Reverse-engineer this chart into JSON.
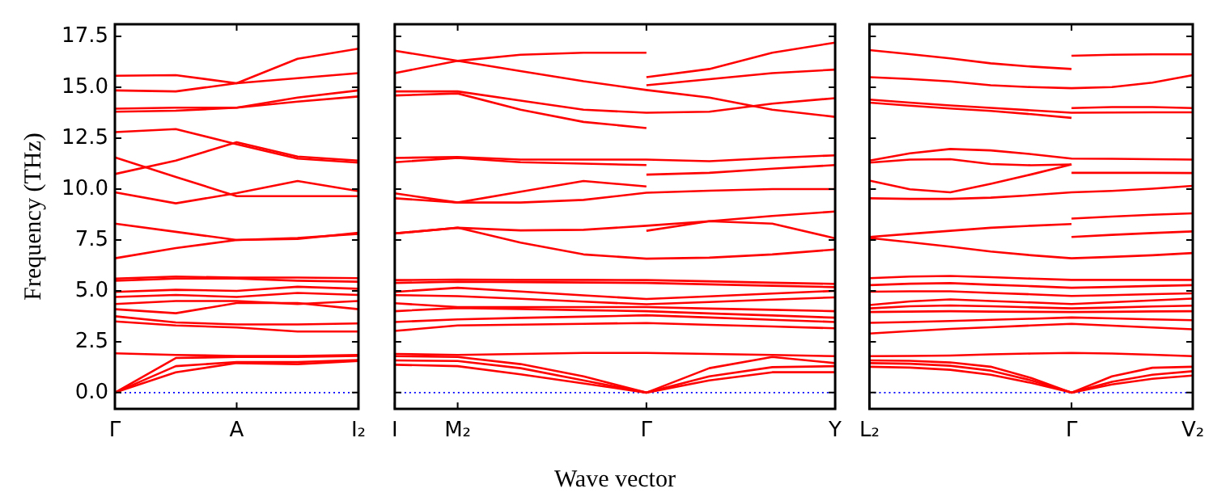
{
  "chart_data": [
    {
      "type": "line",
      "ylabel": "Frequency (THz)",
      "categories": [
        "Γ",
        null,
        "A",
        null,
        "I₂"
      ],
      "ylim": [
        -0.8,
        18.1
      ],
      "yticks": [
        {
          "value": 0,
          "label": "0.0"
        },
        2.5,
        {
          "value": 5,
          "label": "5.0"
        },
        7.5,
        {
          "value": 10,
          "label": "10.0"
        },
        12.5,
        {
          "value": 15,
          "label": "15.0"
        },
        17.5
      ],
      "ref_lines": [
        {
          "axis": "y",
          "value": 0,
          "color": "#0000ff",
          "line_style": "dotted"
        }
      ],
      "series": [
        {
          "color": "#ff0000",
          "values": [
            0,
            1.0,
            1.45,
            1.4,
            1.55
          ]
        },
        {
          "color": "#ff0000",
          "values": [
            0,
            1.3,
            1.5,
            1.5,
            1.6
          ]
        },
        {
          "color": "#ff0000",
          "values": [
            0,
            1.7,
            1.75,
            1.75,
            1.8
          ]
        },
        {
          "color": "#ff0000",
          "values": [
            1.93,
            1.85,
            1.8,
            1.8,
            1.85
          ]
        },
        {
          "color": "#ff0000",
          "values": [
            3.5,
            3.3,
            3.2,
            3.0,
            3.0
          ]
        },
        {
          "color": "#ff0000",
          "values": [
            3.75,
            3.45,
            3.35,
            3.35,
            3.4
          ]
        },
        {
          "color": "#ff0000",
          "values": [
            4.1,
            3.9,
            4.4,
            4.4,
            4.1
          ]
        },
        {
          "color": "#ff0000",
          "values": [
            4.35,
            4.5,
            4.5,
            4.35,
            4.5
          ]
        },
        {
          "color": "#ff0000",
          "values": [
            4.7,
            4.8,
            4.7,
            4.9,
            4.8
          ]
        },
        {
          "color": "#ff0000",
          "values": [
            4.95,
            5.05,
            5.0,
            5.2,
            5.1
          ]
        },
        {
          "color": "#ff0000",
          "values": [
            5.5,
            5.6,
            5.6,
            5.5,
            5.45
          ]
        },
        {
          "color": "#ff0000",
          "values": [
            5.6,
            5.7,
            5.65,
            5.65,
            5.62
          ]
        },
        {
          "color": "#ff0000",
          "values": [
            6.6,
            7.1,
            7.5,
            7.55,
            7.85
          ]
        },
        {
          "color": "#ff0000",
          "values": [
            8.3,
            7.9,
            7.5,
            7.6,
            7.8
          ]
        },
        {
          "color": "#ff0000",
          "values": [
            9.84,
            9.3,
            9.8,
            10.4,
            9.9
          ]
        },
        {
          "color": "#ff0000",
          "values": [
            11.56,
            10.6,
            9.65,
            9.65,
            9.65
          ]
        },
        {
          "color": "#ff0000",
          "values": [
            10.74,
            11.4,
            12.3,
            11.6,
            11.4
          ]
        },
        {
          "color": "#ff0000",
          "values": [
            12.8,
            12.95,
            12.2,
            11.5,
            11.3
          ]
        },
        {
          "color": "#ff0000",
          "values": [
            13.8,
            13.85,
            14.0,
            14.3,
            14.55
          ]
        },
        {
          "color": "#ff0000",
          "values": [
            13.95,
            14.0,
            14.0,
            14.5,
            14.85
          ]
        },
        {
          "color": "#ff0000",
          "values": [
            14.85,
            14.8,
            15.2,
            15.45,
            15.7
          ]
        },
        {
          "color": "#ff0000",
          "values": [
            15.57,
            15.6,
            15.2,
            16.4,
            16.9
          ]
        }
      ]
    },
    {
      "type": "line",
      "xlabel": "Wave vector",
      "tick_labels": "x",
      "categories": [
        "I",
        "M₂",
        null,
        null,
        "Γ",
        null,
        null,
        "Y"
      ],
      "ylim": [
        -0.8,
        18.1
      ],
      "yticks": [
        0,
        2.5,
        5,
        7.5,
        10,
        12.5,
        15,
        17.5
      ],
      "ref_lines": [
        {
          "axis": "y",
          "value": 0,
          "color": "#0000ff",
          "line_style": "dotted"
        }
      ],
      "series": [
        {
          "color": "#ff0000",
          "values": [
            16.8,
            16.3,
            15.8,
            15.3,
            14.87,
            14.5,
            13.9,
            13.55
          ]
        },
        {
          "color": "#ff0000",
          "values": [
            15.7,
            16.3,
            16.6,
            16.7,
            16.7,
            null,
            null,
            null
          ]
        },
        {
          "color": "#ff0000",
          "values": [
            14.8,
            14.8,
            14.35,
            13.9,
            13.75,
            13.8,
            14.2,
            14.47
          ]
        },
        {
          "color": "#ff0000",
          "values": [
            14.6,
            14.7,
            13.9,
            13.3,
            13.0,
            null,
            null,
            null
          ]
        },
        {
          "color": "#ff0000",
          "values": [
            null,
            null,
            null,
            null,
            15.5,
            15.9,
            16.7,
            17.2
          ]
        },
        {
          "color": "#ff0000",
          "values": [
            null,
            null,
            null,
            null,
            15.1,
            15.4,
            15.7,
            15.87
          ]
        },
        {
          "color": "#ff0000",
          "values": [
            11.53,
            11.58,
            11.45,
            11.45,
            11.45,
            11.37,
            11.53,
            11.66
          ]
        },
        {
          "color": "#ff0000",
          "values": [
            11.32,
            11.53,
            11.32,
            11.25,
            11.18,
            null,
            null,
            null
          ]
        },
        {
          "color": "#ff0000",
          "values": [
            null,
            null,
            null,
            null,
            10.71,
            10.8,
            11.0,
            11.18
          ]
        },
        {
          "color": "#ff0000",
          "values": [
            9.79,
            9.34,
            9.87,
            10.4,
            10.13,
            null,
            null,
            null
          ]
        },
        {
          "color": "#ff0000",
          "values": [
            9.55,
            9.34,
            9.34,
            9.47,
            9.82,
            9.92,
            10.0,
            10.0
          ]
        },
        {
          "color": "#ff0000",
          "values": [
            7.82,
            8.1,
            7.97,
            8.0,
            8.2,
            8.42,
            8.68,
            8.9
          ]
        },
        {
          "color": "#ff0000",
          "values": [
            7.82,
            8.1,
            7.37,
            6.79,
            6.58,
            6.63,
            6.79,
            7.03
          ]
        },
        {
          "color": "#ff0000",
          "values": [
            null,
            null,
            null,
            null,
            7.95,
            8.42,
            8.3,
            7.58
          ]
        },
        {
          "color": "#ff0000",
          "values": [
            5.53,
            5.55,
            5.54,
            5.54,
            5.53,
            5.47,
            5.4,
            5.34
          ]
        },
        {
          "color": "#ff0000",
          "values": [
            5.39,
            5.45,
            5.43,
            5.41,
            5.39,
            5.32,
            5.25,
            5.18
          ]
        },
        {
          "color": "#ff0000",
          "values": [
            4.95,
            5.15,
            4.97,
            4.78,
            4.6,
            4.73,
            4.87,
            5.0
          ]
        },
        {
          "color": "#ff0000",
          "values": [
            4.79,
            4.74,
            4.61,
            4.47,
            4.34,
            4.45,
            4.57,
            4.68
          ]
        },
        {
          "color": "#ff0000",
          "values": [
            4.39,
            4.2,
            4.2,
            4.2,
            4.2,
            4.13,
            4.07,
            4.0
          ]
        },
        {
          "color": "#ff0000",
          "values": [
            4.0,
            4.16,
            4.11,
            4.05,
            4.0,
            3.89,
            3.79,
            3.68
          ]
        },
        {
          "color": "#ff0000",
          "values": [
            3.47,
            3.6,
            3.67,
            3.73,
            3.8,
            3.69,
            3.58,
            3.47
          ]
        },
        {
          "color": "#ff0000",
          "values": [
            3.03,
            3.3,
            3.34,
            3.38,
            3.42,
            3.33,
            3.25,
            3.16
          ]
        },
        {
          "color": "#ff0000",
          "values": [
            1.37,
            1.3,
            0.9,
            0.45,
            0,
            0.6,
            1.0,
            1.0
          ]
        },
        {
          "color": "#ff0000",
          "values": [
            1.58,
            1.55,
            1.2,
            0.6,
            0,
            0.8,
            1.25,
            1.3
          ]
        },
        {
          "color": "#ff0000",
          "values": [
            1.79,
            1.75,
            1.4,
            0.8,
            0,
            1.2,
            1.75,
            1.45
          ]
        },
        {
          "color": "#ff0000",
          "values": [
            1.9,
            1.85,
            1.9,
            1.95,
            1.95,
            1.9,
            1.85,
            1.79
          ]
        }
      ]
    },
    {
      "type": "line",
      "tick_labels": "x",
      "categories": [
        "L₂",
        null,
        null,
        null,
        null,
        "Γ",
        null,
        null,
        "V₂"
      ],
      "ylim": [
        -0.8,
        18.1
      ],
      "yticks": [
        0,
        2.5,
        5,
        7.5,
        10,
        12.5,
        15,
        17.5
      ],
      "ref_lines": [
        {
          "axis": "y",
          "value": 0,
          "color": "#0000ff",
          "line_style": "dotted"
        }
      ],
      "series": [
        {
          "color": "#ff0000",
          "values": [
            16.83,
            16.63,
            16.42,
            16.18,
            16.02,
            15.9,
            null,
            null,
            null
          ]
        },
        {
          "color": "#ff0000",
          "values": [
            null,
            null,
            null,
            null,
            null,
            16.55,
            16.6,
            16.62,
            16.62
          ]
        },
        {
          "color": "#ff0000",
          "values": [
            15.5,
            15.41,
            15.29,
            15.1,
            15.01,
            14.96,
            15.01,
            15.23,
            15.6
          ]
        },
        {
          "color": "#ff0000",
          "values": [
            14.4,
            14.25,
            14.11,
            13.99,
            13.87,
            13.75,
            13.76,
            13.77,
            13.77
          ]
        },
        {
          "color": "#ff0000",
          "values": [
            14.25,
            14.1,
            13.96,
            13.84,
            13.68,
            13.5,
            null,
            null,
            null
          ]
        },
        {
          "color": "#ff0000",
          "values": [
            null,
            null,
            null,
            null,
            null,
            13.98,
            14.03,
            14.03,
            13.98
          ]
        },
        {
          "color": "#ff0000",
          "values": [
            11.4,
            11.76,
            11.97,
            11.9,
            11.72,
            11.5,
            11.49,
            11.47,
            11.45
          ]
        },
        {
          "color": "#ff0000",
          "values": [
            11.3,
            11.45,
            11.47,
            11.23,
            11.17,
            11.21,
            null,
            null,
            null
          ]
        },
        {
          "color": "#ff0000",
          "values": [
            null,
            null,
            null,
            null,
            null,
            10.8,
            10.8,
            10.8,
            10.79
          ]
        },
        {
          "color": "#ff0000",
          "values": [
            10.42,
            9.99,
            9.84,
            10.26,
            10.72,
            11.21,
            null,
            null,
            null
          ]
        },
        {
          "color": "#ff0000",
          "values": [
            9.55,
            9.52,
            9.52,
            9.58,
            9.7,
            9.84,
            9.91,
            10.02,
            10.16
          ]
        },
        {
          "color": "#ff0000",
          "values": [
            7.65,
            7.8,
            7.95,
            8.1,
            8.2,
            8.28,
            null,
            null,
            null
          ]
        },
        {
          "color": "#ff0000",
          "values": [
            7.6,
            7.39,
            7.17,
            6.93,
            6.75,
            6.6,
            6.67,
            6.75,
            6.86
          ]
        },
        {
          "color": "#ff0000",
          "values": [
            null,
            null,
            null,
            null,
            null,
            8.55,
            8.65,
            8.74,
            8.81
          ]
        },
        {
          "color": "#ff0000",
          "values": [
            null,
            null,
            null,
            null,
            null,
            7.65,
            7.75,
            7.84,
            7.92
          ]
        },
        {
          "color": "#ff0000",
          "values": [
            5.62,
            5.7,
            5.73,
            5.67,
            5.6,
            5.54,
            5.54,
            5.54,
            5.54
          ]
        },
        {
          "color": "#ff0000",
          "values": [
            5.28,
            5.35,
            5.38,
            5.3,
            5.23,
            5.15,
            5.19,
            5.24,
            5.28
          ]
        },
        {
          "color": "#ff0000",
          "values": [
            4.96,
            4.98,
            4.98,
            4.9,
            4.83,
            4.75,
            4.79,
            4.84,
            4.88
          ]
        },
        {
          "color": "#ff0000",
          "values": [
            4.3,
            4.48,
            4.58,
            4.5,
            4.43,
            4.35,
            4.44,
            4.53,
            4.62
          ]
        },
        {
          "color": "#ff0000",
          "values": [
            4.14,
            4.24,
            4.28,
            4.24,
            4.19,
            4.14,
            4.18,
            4.23,
            4.27
          ]
        },
        {
          "color": "#ff0000",
          "values": [
            3.96,
            3.98,
            4.0,
            3.98,
            3.97,
            3.96,
            3.97,
            3.99,
            4.0
          ]
        },
        {
          "color": "#ff0000",
          "values": [
            3.43,
            3.47,
            3.52,
            3.58,
            3.63,
            3.69,
            3.65,
            3.6,
            3.56
          ]
        },
        {
          "color": "#ff0000",
          "values": [
            2.9,
            3.02,
            3.13,
            3.21,
            3.3,
            3.38,
            3.29,
            3.2,
            3.11
          ]
        },
        {
          "color": "#ff0000",
          "values": [
            1.27,
            1.23,
            1.12,
            0.88,
            0.48,
            0,
            0.4,
            0.68,
            0.84
          ]
        },
        {
          "color": "#ff0000",
          "values": [
            1.45,
            1.42,
            1.32,
            1.08,
            0.6,
            0,
            0.53,
            0.88,
            1.05
          ]
        },
        {
          "color": "#ff0000",
          "values": [
            1.58,
            1.56,
            1.48,
            1.27,
            0.72,
            0,
            0.8,
            1.22,
            1.27
          ]
        },
        {
          "color": "#ff0000",
          "values": [
            1.79,
            1.8,
            1.82,
            1.88,
            1.92,
            1.95,
            1.92,
            1.86,
            1.79
          ]
        }
      ]
    }
  ]
}
